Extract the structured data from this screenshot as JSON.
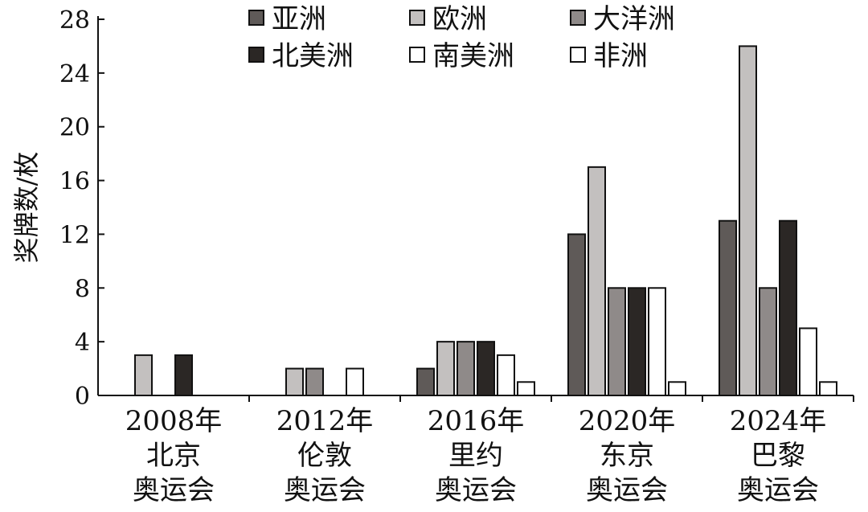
{
  "chart_data": {
    "type": "bar",
    "ylabel": "奖牌数/枚",
    "xlabel": "",
    "ylim": [
      0,
      28
    ],
    "yticks": [
      0,
      4,
      8,
      12,
      16,
      20,
      24,
      28
    ],
    "grid": false,
    "legend_position": "top",
    "categories": [
      [
        "2008年",
        "北京",
        "奥运会"
      ],
      [
        "2012年",
        "伦敦",
        "奥运会"
      ],
      [
        "2016年",
        "里约",
        "奥运会"
      ],
      [
        "2020年",
        "东京",
        "奥运会"
      ],
      [
        "2024年",
        "巴黎",
        "奥运会"
      ]
    ],
    "series": [
      {
        "name": "亚洲",
        "color": "#5f5a58",
        "values": [
          0,
          0,
          2,
          12,
          13
        ]
      },
      {
        "name": "欧洲",
        "color": "#c3c0bf",
        "values": [
          3,
          2,
          4,
          17,
          26
        ]
      },
      {
        "name": "大洋洲",
        "color": "#8f8a89",
        "values": [
          0,
          2,
          4,
          8,
          8
        ]
      },
      {
        "name": "北美洲",
        "color": "#2b2725",
        "values": [
          3,
          0,
          4,
          8,
          13
        ]
      },
      {
        "name": "南美洲",
        "color": "#ffffff",
        "values": [
          0,
          2,
          3,
          8,
          5
        ]
      },
      {
        "name": "非洲",
        "color": "#ffffff",
        "values": [
          0,
          0,
          1,
          1,
          1
        ]
      }
    ]
  }
}
